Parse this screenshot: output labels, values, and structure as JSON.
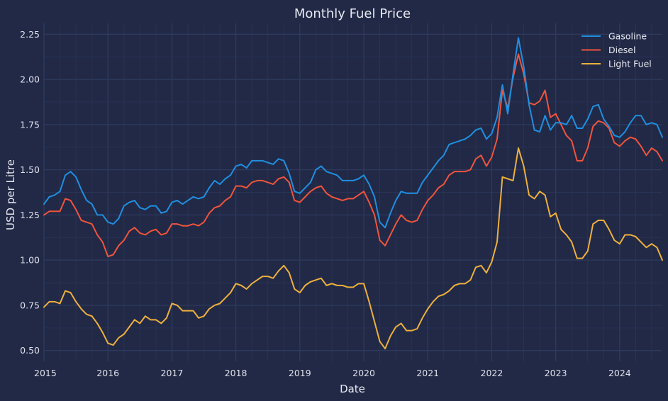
{
  "chart_data": {
    "type": "line",
    "title": "Monthly Fuel Price",
    "xlabel": "Date",
    "ylabel": "USD per Litre",
    "x_start": "2015-01",
    "x_frequency": "monthly",
    "xlim": [
      "2015-01",
      "2024-09"
    ],
    "ylim": [
      0.44,
      2.31
    ],
    "x_ticks": [
      "2015",
      "2016",
      "2017",
      "2018",
      "2019",
      "2020",
      "2021",
      "2022",
      "2023",
      "2024"
    ],
    "y_ticks": [
      "0.50",
      "0.75",
      "1.00",
      "1.25",
      "1.50",
      "1.75",
      "2.00",
      "2.25"
    ],
    "grid": true,
    "legend_position": "top-right",
    "background": "#212946",
    "series": [
      {
        "name": "Gasoline",
        "color": "#1f8fe0",
        "values": [
          1.31,
          1.35,
          1.36,
          1.38,
          1.47,
          1.49,
          1.46,
          1.39,
          1.33,
          1.31,
          1.25,
          1.25,
          1.21,
          1.2,
          1.23,
          1.3,
          1.32,
          1.33,
          1.29,
          1.28,
          1.3,
          1.3,
          1.26,
          1.27,
          1.32,
          1.33,
          1.31,
          1.33,
          1.35,
          1.34,
          1.35,
          1.4,
          1.44,
          1.42,
          1.45,
          1.47,
          1.52,
          1.53,
          1.51,
          1.55,
          1.55,
          1.55,
          1.54,
          1.53,
          1.56,
          1.55,
          1.48,
          1.38,
          1.37,
          1.4,
          1.43,
          1.5,
          1.52,
          1.49,
          1.48,
          1.47,
          1.44,
          1.44,
          1.44,
          1.45,
          1.47,
          1.42,
          1.35,
          1.21,
          1.18,
          1.26,
          1.33,
          1.38,
          1.37,
          1.37,
          1.37,
          1.43,
          1.47,
          1.51,
          1.55,
          1.58,
          1.64,
          1.65,
          1.66,
          1.67,
          1.69,
          1.72,
          1.73,
          1.67,
          1.7,
          1.79,
          1.97,
          1.81,
          2.03,
          2.23,
          2.07,
          1.86,
          1.72,
          1.71,
          1.8,
          1.72,
          1.76,
          1.76,
          1.75,
          1.8,
          1.73,
          1.73,
          1.78,
          1.85,
          1.86,
          1.78,
          1.74,
          1.69,
          1.68,
          1.71,
          1.76,
          1.8,
          1.8,
          1.75,
          1.76,
          1.75,
          1.68
        ]
      },
      {
        "name": "Diesel",
        "color": "#f0543c",
        "values": [
          1.25,
          1.27,
          1.27,
          1.27,
          1.34,
          1.33,
          1.28,
          1.22,
          1.21,
          1.2,
          1.14,
          1.1,
          1.02,
          1.03,
          1.08,
          1.11,
          1.16,
          1.18,
          1.15,
          1.14,
          1.16,
          1.17,
          1.14,
          1.15,
          1.2,
          1.2,
          1.19,
          1.19,
          1.2,
          1.19,
          1.21,
          1.26,
          1.29,
          1.3,
          1.33,
          1.35,
          1.41,
          1.41,
          1.4,
          1.43,
          1.44,
          1.44,
          1.43,
          1.42,
          1.45,
          1.46,
          1.43,
          1.33,
          1.32,
          1.35,
          1.38,
          1.4,
          1.41,
          1.37,
          1.35,
          1.34,
          1.33,
          1.34,
          1.34,
          1.36,
          1.38,
          1.32,
          1.25,
          1.11,
          1.08,
          1.14,
          1.2,
          1.25,
          1.22,
          1.21,
          1.22,
          1.28,
          1.33,
          1.36,
          1.4,
          1.42,
          1.47,
          1.49,
          1.49,
          1.49,
          1.5,
          1.56,
          1.58,
          1.52,
          1.57,
          1.67,
          1.94,
          1.84,
          2.01,
          2.14,
          2.03,
          1.87,
          1.86,
          1.88,
          1.94,
          1.79,
          1.81,
          1.75,
          1.69,
          1.66,
          1.55,
          1.55,
          1.62,
          1.74,
          1.77,
          1.76,
          1.73,
          1.65,
          1.63,
          1.66,
          1.68,
          1.67,
          1.63,
          1.58,
          1.62,
          1.6,
          1.55
        ]
      },
      {
        "name": "Light Fuel",
        "color": "#eeb03c",
        "values": [
          0.74,
          0.77,
          0.77,
          0.76,
          0.83,
          0.82,
          0.77,
          0.73,
          0.7,
          0.69,
          0.65,
          0.6,
          0.54,
          0.53,
          0.57,
          0.59,
          0.63,
          0.67,
          0.65,
          0.69,
          0.67,
          0.67,
          0.65,
          0.68,
          0.76,
          0.75,
          0.72,
          0.72,
          0.72,
          0.68,
          0.69,
          0.73,
          0.75,
          0.76,
          0.79,
          0.82,
          0.87,
          0.86,
          0.84,
          0.87,
          0.89,
          0.91,
          0.91,
          0.9,
          0.94,
          0.97,
          0.93,
          0.84,
          0.82,
          0.86,
          0.88,
          0.89,
          0.9,
          0.86,
          0.87,
          0.86,
          0.86,
          0.85,
          0.85,
          0.87,
          0.87,
          0.77,
          0.66,
          0.55,
          0.51,
          0.58,
          0.63,
          0.65,
          0.61,
          0.61,
          0.62,
          0.68,
          0.73,
          0.77,
          0.8,
          0.81,
          0.83,
          0.86,
          0.87,
          0.87,
          0.89,
          0.96,
          0.97,
          0.93,
          0.99,
          1.1,
          1.46,
          1.45,
          1.44,
          1.62,
          1.52,
          1.36,
          1.34,
          1.38,
          1.36,
          1.24,
          1.26,
          1.17,
          1.14,
          1.1,
          1.01,
          1.01,
          1.05,
          1.2,
          1.22,
          1.22,
          1.17,
          1.11,
          1.09,
          1.14,
          1.14,
          1.13,
          1.1,
          1.07,
          1.09,
          1.07,
          1.0
        ]
      }
    ]
  }
}
